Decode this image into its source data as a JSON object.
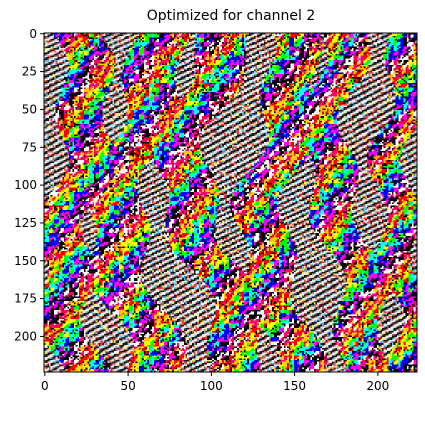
{
  "figure": {
    "title": "Optimized for channel 2",
    "image_size": [
      224,
      224
    ],
    "description": "Feature visualization: saturated multicolored (red, yellow, green, cyan, blue, magenta, black, white) striped texture forming wavy vertical bands",
    "palette": [
      "#ff0000",
      "#ffff00",
      "#00ff00",
      "#00ffff",
      "#0000ff",
      "#ff00ff",
      "#000000",
      "#ffffff",
      "#ff0066",
      "#ffcc00"
    ]
  },
  "axes": {
    "x_ticks": [
      "0",
      "50",
      "100",
      "150",
      "200"
    ],
    "y_ticks": [
      "0",
      "25",
      "50",
      "75",
      "100",
      "125",
      "150",
      "175",
      "200"
    ],
    "x_range": [
      0,
      224
    ],
    "y_range": [
      0,
      224
    ]
  }
}
